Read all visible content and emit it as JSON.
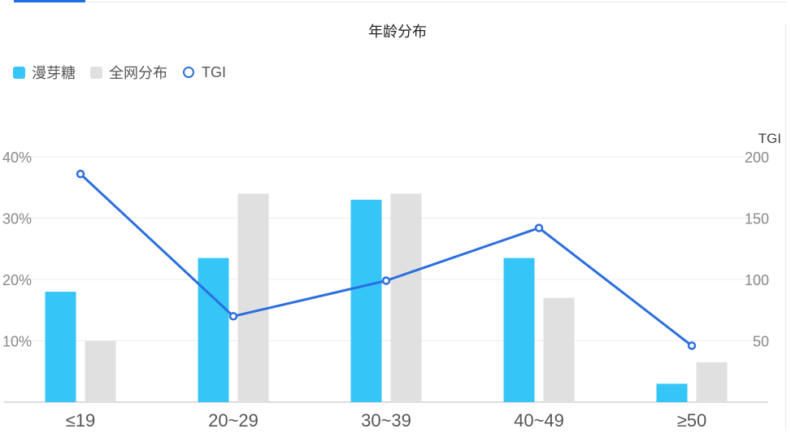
{
  "chart_data": {
    "type": "bar",
    "title": "年龄分布",
    "categories": [
      "≤19",
      "20~29",
      "30~39",
      "40~49",
      "≥50"
    ],
    "series": [
      {
        "name": "漫芽糖",
        "type": "bar",
        "color": "#36c5f7",
        "values": [
          18,
          23.5,
          33,
          23.5,
          3
        ]
      },
      {
        "name": "全网分布",
        "type": "bar",
        "color": "#e0e0e0",
        "values": [
          10,
          34,
          34,
          17,
          6.5
        ]
      },
      {
        "name": "TGI",
        "type": "line",
        "axis": "right",
        "color": "#2b6fde",
        "values": [
          186,
          70,
          99,
          142,
          46
        ]
      }
    ],
    "y_left": {
      "ticks": [
        "10%",
        "20%",
        "30%",
        "40%"
      ],
      "ylim": [
        0,
        40
      ]
    },
    "y_right": {
      "label": "TGI",
      "ticks": [
        "50",
        "100",
        "150",
        "200"
      ],
      "ylim": [
        0,
        200
      ]
    },
    "legend_position": "top-left",
    "grid": true
  }
}
